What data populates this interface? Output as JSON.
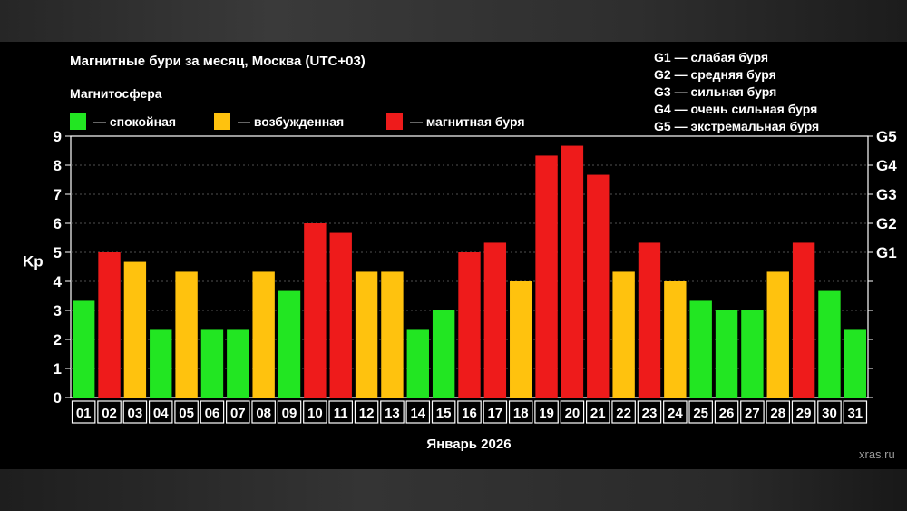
{
  "chart_data": {
    "type": "bar",
    "title": "Магнитные бури за месяц, Москва (UTC+03)",
    "legend_title": "Магнитосфера",
    "legend": [
      {
        "label": "— спокойная",
        "color": "#22e622",
        "key": "calm"
      },
      {
        "label": "— возбужденная",
        "color": "#ffc20e",
        "key": "excited"
      },
      {
        "label": "— магнитная буря",
        "color": "#ee1b1b",
        "key": "storm"
      }
    ],
    "g_legend": [
      "G1 — слабая буря",
      "G2 — средняя буря",
      "G3 — сильная буря",
      "G4 — очень сильная буря",
      "G5 — экстремальная буря"
    ],
    "ylabel": "Kp",
    "xlabel": "Январь 2026",
    "ylim": [
      0,
      9
    ],
    "yticks": [
      "0",
      "1",
      "2",
      "3",
      "4",
      "5",
      "6",
      "7",
      "8",
      "9"
    ],
    "right_ticks": [
      {
        "value": 5,
        "label": "G1"
      },
      {
        "value": 6,
        "label": "G2"
      },
      {
        "value": 7,
        "label": "G3"
      },
      {
        "value": 8,
        "label": "G4"
      },
      {
        "value": 9,
        "label": "G5"
      }
    ],
    "grid": true,
    "categories": [
      "01",
      "02",
      "03",
      "04",
      "05",
      "06",
      "07",
      "08",
      "09",
      "10",
      "11",
      "12",
      "13",
      "14",
      "15",
      "16",
      "17",
      "18",
      "19",
      "20",
      "21",
      "22",
      "23",
      "24",
      "25",
      "26",
      "27",
      "28",
      "29",
      "30",
      "31"
    ],
    "values": [
      3.33,
      5,
      4.67,
      2.33,
      4.33,
      2.33,
      2.33,
      4.33,
      3.67,
      6,
      5.67,
      4.33,
      4.33,
      2.33,
      3,
      5,
      5.33,
      4,
      8.33,
      8.67,
      7.67,
      4.33,
      5.33,
      4,
      3.33,
      3,
      3,
      4.33,
      5.33,
      3.67,
      2.33
    ],
    "levels": [
      "calm",
      "storm",
      "excited",
      "calm",
      "excited",
      "calm",
      "calm",
      "excited",
      "calm",
      "storm",
      "storm",
      "excited",
      "excited",
      "calm",
      "calm",
      "storm",
      "storm",
      "excited",
      "storm",
      "storm",
      "storm",
      "excited",
      "storm",
      "excited",
      "calm",
      "calm",
      "calm",
      "excited",
      "storm",
      "calm",
      "calm"
    ]
  },
  "watermark": "xras.ru"
}
